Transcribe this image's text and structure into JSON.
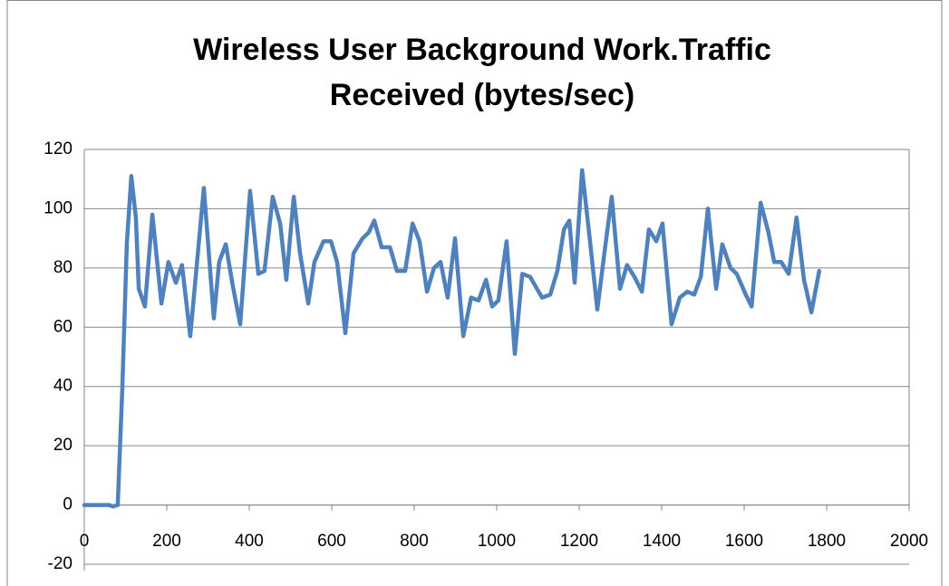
{
  "chart_data": {
    "type": "line",
    "title": "Wireless User Background Work.Traffic Received (bytes/sec)",
    "xlim": [
      0,
      2000
    ],
    "xticks": [
      0,
      200,
      400,
      600,
      800,
      1000,
      1200,
      1400,
      1600,
      1800,
      2000
    ],
    "ylim": [
      -20,
      120
    ],
    "yticks": [
      -20,
      0,
      20,
      40,
      60,
      80,
      100,
      120
    ],
    "grid": true,
    "series": [
      {
        "color": "#4f81bd",
        "x": [
          0,
          20,
          40,
          60,
          70,
          81,
          92,
          103,
          114,
          125,
          132,
          147,
          165,
          187,
          204,
          222,
          237,
          257,
          290,
          314,
          327,
          343,
          360,
          378,
          402,
          422,
          437,
          457,
          475,
          490,
          508,
          523,
          543,
          558,
          580,
          598,
          613,
          633,
          653,
          675,
          690,
          703,
          721,
          741,
          758,
          778,
          796,
          813,
          831,
          848,
          864,
          881,
          899,
          919,
          938,
          956,
          974,
          989,
          1004,
          1024,
          1044,
          1062,
          1081,
          1110,
          1130,
          1147,
          1163,
          1176,
          1189,
          1207,
          1224,
          1244,
          1262,
          1279,
          1299,
          1316,
          1334,
          1352,
          1369,
          1387,
          1402,
          1424,
          1444,
          1462,
          1479,
          1495,
          1512,
          1532,
          1547,
          1567,
          1582,
          1604,
          1618,
          1640,
          1659,
          1673,
          1690,
          1708,
          1727,
          1745,
          1763,
          1782
        ],
        "values": [
          0,
          0,
          0,
          0,
          -0.5,
          0,
          39,
          88,
          111,
          97,
          73,
          67,
          98,
          68,
          82,
          75,
          81,
          57,
          107,
          63,
          82,
          88,
          74,
          61,
          106,
          78,
          79,
          104,
          95,
          76,
          104,
          85,
          68,
          82,
          89,
          89,
          82,
          58,
          85,
          90,
          92,
          96,
          87,
          87,
          79,
          79,
          95,
          89,
          72,
          80,
          82,
          70,
          90,
          57,
          70,
          69,
          76,
          67,
          69,
          89,
          51,
          78,
          77,
          70,
          71,
          79,
          93,
          96,
          75,
          113,
          92,
          66,
          86,
          104,
          73,
          81,
          77,
          72,
          93,
          89,
          95,
          61,
          70,
          72,
          71,
          77,
          100,
          73,
          88,
          80,
          78,
          71,
          67,
          102,
          92,
          82,
          82,
          78,
          97,
          76,
          65,
          79
        ]
      }
    ]
  }
}
